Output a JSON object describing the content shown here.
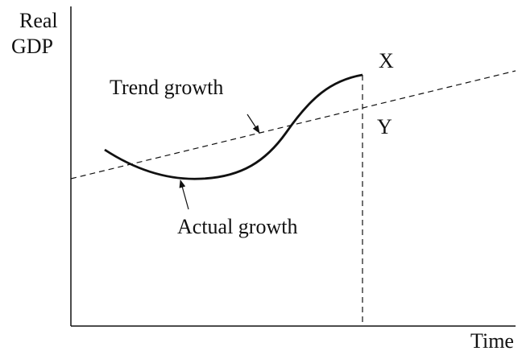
{
  "axes": {
    "y_label": [
      "Real",
      "GDP"
    ],
    "x_label": "Time"
  },
  "points": {
    "x": "X",
    "y": "Y"
  },
  "curves": {
    "trend": "Trend growth",
    "actual": "Actual growth"
  }
}
